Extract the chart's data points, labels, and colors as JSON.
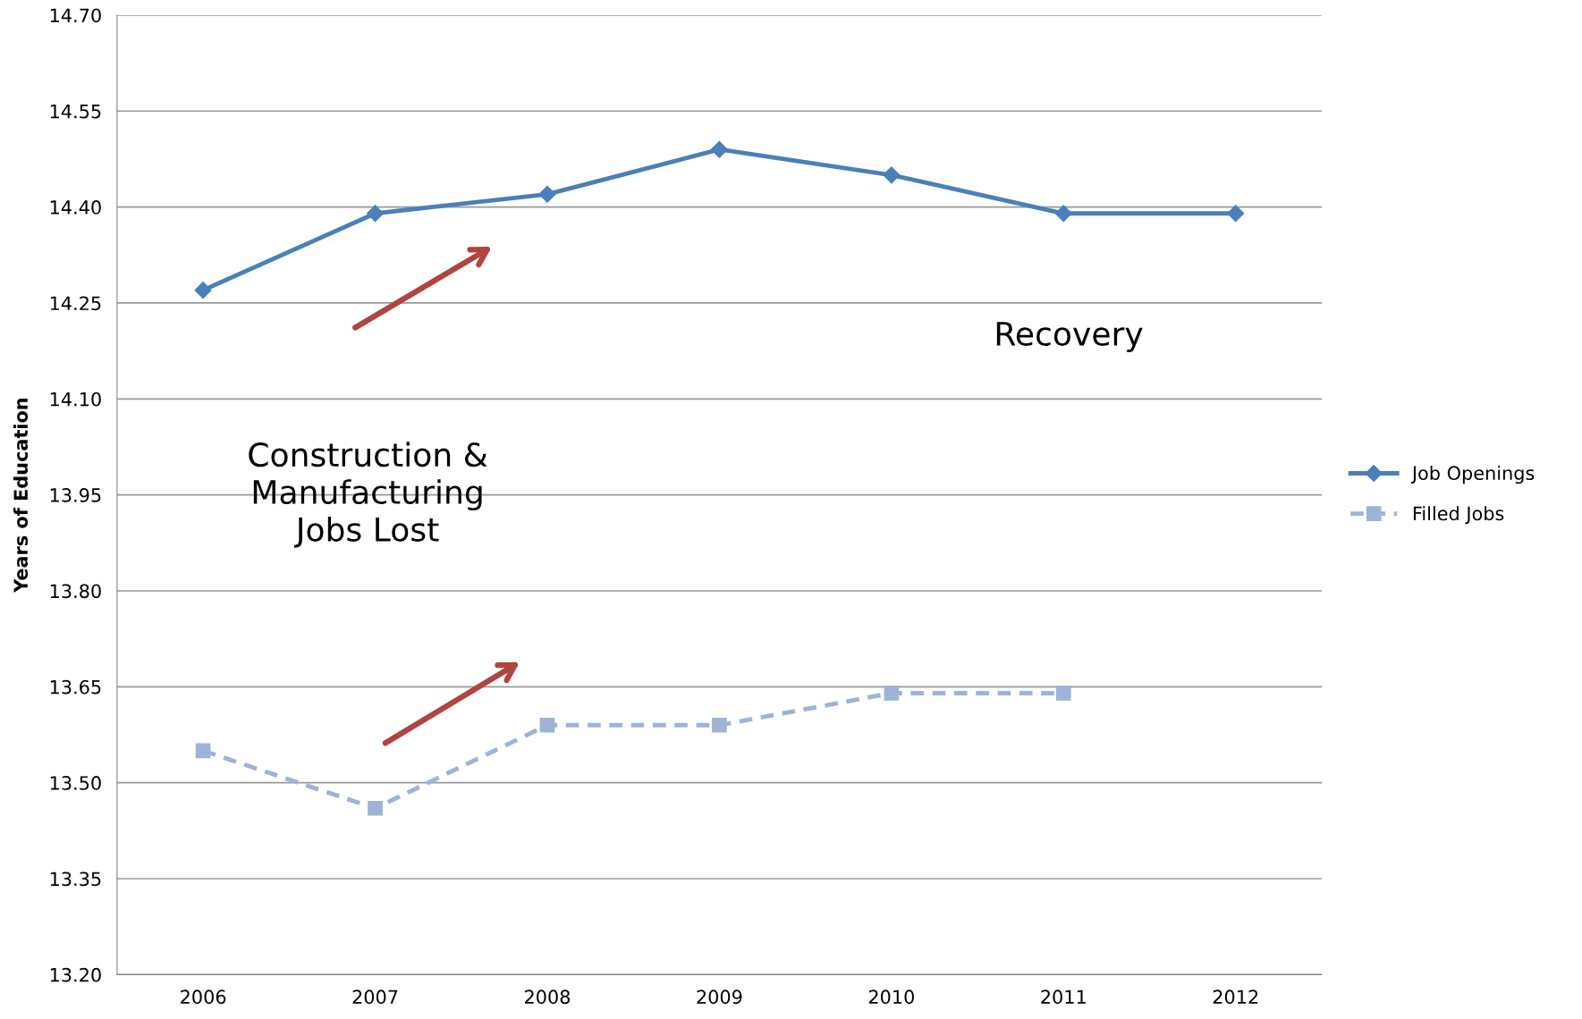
{
  "chart_data": {
    "type": "line",
    "ylabel": "Years of Education",
    "categories": [
      "2006",
      "2007",
      "2008",
      "2009",
      "2010",
      "2011",
      "2012"
    ],
    "series": [
      {
        "name": "Job Openings",
        "color": "#4a7fb9",
        "marker": "diamond",
        "line_style": "solid",
        "values": [
          14.27,
          14.39,
          14.42,
          14.49,
          14.45,
          14.39,
          14.39
        ]
      },
      {
        "name": "Filled Jobs",
        "color": "#9db3d8",
        "marker": "square",
        "line_style": "dashed",
        "values": [
          13.55,
          13.46,
          13.59,
          13.59,
          13.64,
          13.64,
          null
        ]
      }
    ],
    "ylim": [
      13.2,
      14.7
    ],
    "yticks": [
      {
        "value": 13.2,
        "label": "13.20"
      },
      {
        "value": 13.35,
        "label": "13.35"
      },
      {
        "value": 13.5,
        "label": "13.50"
      },
      {
        "value": 13.65,
        "label": "13.65"
      },
      {
        "value": 13.8,
        "label": "13.80"
      },
      {
        "value": 13.95,
        "label": "13.95"
      },
      {
        "value": 14.1,
        "label": "14.10"
      },
      {
        "value": 14.25,
        "label": "14.25"
      },
      {
        "value": 14.4,
        "label": "14.40"
      },
      {
        "value": 14.55,
        "label": "14.55"
      },
      {
        "value": 14.7,
        "label": "14.70"
      }
    ],
    "grid": "y",
    "legend": "right",
    "annotations": [
      "Construction &\nManufacturing\nJobs Lost",
      "Recovery"
    ]
  }
}
